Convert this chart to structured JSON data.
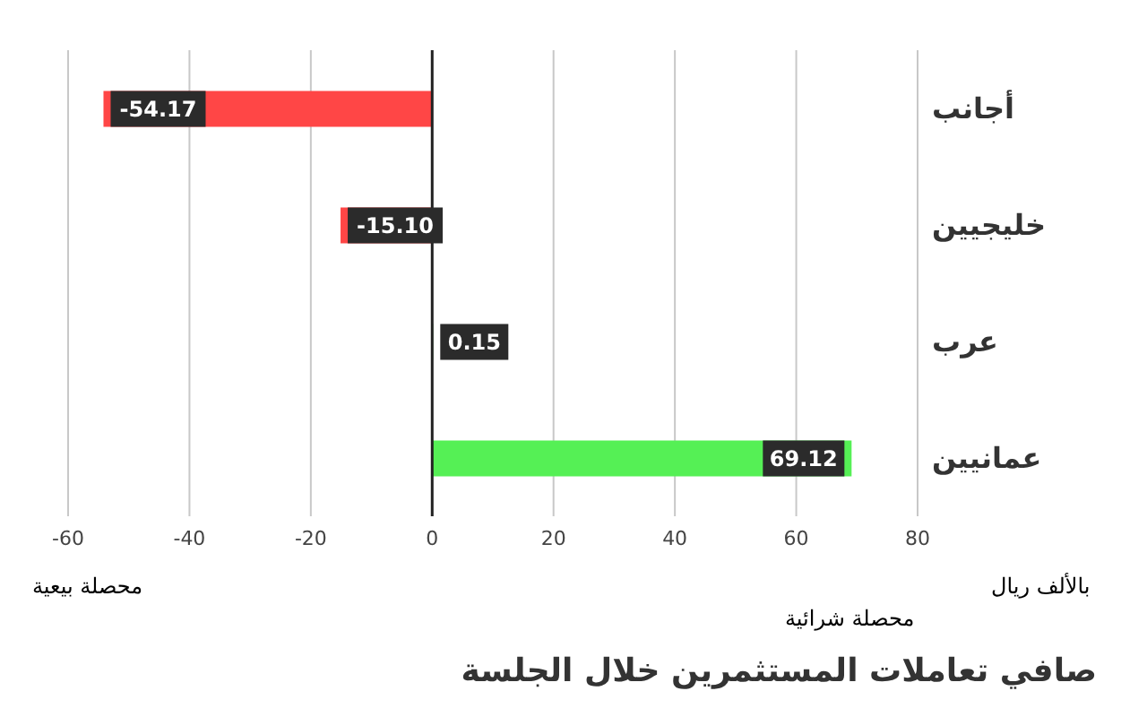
{
  "chart_data": {
    "type": "bar",
    "orientation": "horizontal",
    "title": "صافي تعاملات المستثمرين خلال الجلسة",
    "xlabel": "بالألف ريال",
    "categories": [
      "أجانب",
      "خليجيين",
      "عرب",
      "عمانيين"
    ],
    "values": [
      -54.17,
      -15.1,
      0.15,
      69.12
    ],
    "colors": [
      "#ff4646",
      "#ff4646",
      "#3cc83c",
      "#55f055"
    ],
    "value_labels": [
      "-54.17",
      "-15.10",
      "0.15",
      "69.12"
    ],
    "xlim": [
      -60,
      80
    ],
    "xticks": [
      -60,
      -40,
      -20,
      0,
      20,
      40,
      60,
      80
    ],
    "grid": "x",
    "annotations": [
      "محصلة بيعية",
      "محصلة شرائية"
    ]
  }
}
